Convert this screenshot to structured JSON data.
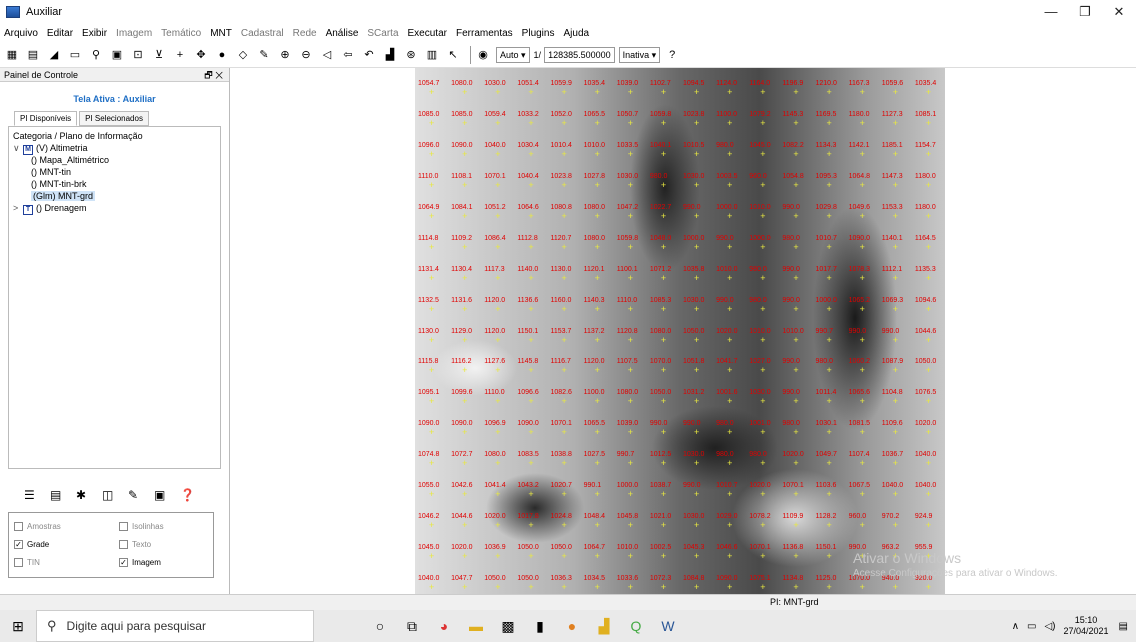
{
  "window": {
    "title": "Auxiliar",
    "minimize": "—",
    "maximize": "❐",
    "close": "✕"
  },
  "menu": [
    {
      "label": "Arquivo",
      "enabled": true
    },
    {
      "label": "Editar",
      "enabled": true
    },
    {
      "label": "Exibir",
      "enabled": true
    },
    {
      "label": "Imagem",
      "enabled": false
    },
    {
      "label": "Temático",
      "enabled": false
    },
    {
      "label": "MNT",
      "enabled": true
    },
    {
      "label": "Cadastral",
      "enabled": false
    },
    {
      "label": "Rede",
      "enabled": false
    },
    {
      "label": "Análise",
      "enabled": true
    },
    {
      "label": "SCarta",
      "enabled": false
    },
    {
      "label": "Executar",
      "enabled": true
    },
    {
      "label": "Ferramentas",
      "enabled": true
    },
    {
      "label": "Plugins",
      "enabled": true
    },
    {
      "label": "Ajuda",
      "enabled": true
    }
  ],
  "toolbar": {
    "zoom_mode": "Auto",
    "scale_prefix": "1/",
    "scale_value": "128385.500000",
    "state": "Inativa",
    "help": "?"
  },
  "panel": {
    "title": "Painel de Controle",
    "pin": "🗗 ✕",
    "active_screen": "Tela Ativa : Auxiliar",
    "tabs": [
      "PI Disponíveis",
      "PI Selecionados"
    ],
    "tree_header": "Categoria / Plano de Informação",
    "category1": {
      "caret": "∨",
      "badge": "M",
      "label": "(V) Altimetria"
    },
    "items": [
      "() Mapa_Altimétrico",
      "() MNT-tin",
      "() MNT-tin-brk",
      "(Glm) MNT-grd"
    ],
    "category2": {
      "caret": ">",
      "badge": "T",
      "label": "() Drenagem"
    }
  },
  "checks": {
    "amostras": "Amostras",
    "isolinhas": "Isolinhas",
    "grade": "Grade",
    "texto": "Texto",
    "tin": "TIN",
    "imagem": "Imagem",
    "checked_mark": "✓"
  },
  "grid_values": [
    [
      "1054.7",
      "1080.0",
      "1030.0",
      "1051.4",
      "1059.9",
      "1035.4",
      "1039.0",
      "1102.7",
      "1094.5",
      "1124.0",
      "1164.0",
      "1196.9",
      "1210.0",
      "1167.3",
      "1059.6",
      "1035.4"
    ],
    [
      "1085.0",
      "1085.0",
      "1059.4",
      "1033.2",
      "1052.0",
      "1065.5",
      "1050.7",
      "1059.8",
      "1023.8",
      "1100.0",
      "1079.2",
      "1145.3",
      "1169.5",
      "1180.0",
      "1127.3",
      "1085.1"
    ],
    [
      "1096.0",
      "1090.0",
      "1040.0",
      "1030.4",
      "1010.4",
      "1010.0",
      "1033.5",
      "1040.1",
      "1010.5",
      "980.0",
      "1045.0",
      "1082.2",
      "1134.3",
      "1142.1",
      "1185.1",
      "1154.7"
    ],
    [
      "1110.0",
      "1108.1",
      "1070.1",
      "1040.4",
      "1023.8",
      "1027.8",
      "1030.0",
      "980.0",
      "1030.0",
      "1003.5",
      "960.0",
      "1054.8",
      "1095.3",
      "1064.8",
      "1147.3",
      "1180.0"
    ],
    [
      "1064.9",
      "1084.1",
      "1051.2",
      "1064.6",
      "1080.8",
      "1080.0",
      "1047.2",
      "1022.7",
      "990.0",
      "1000.0",
      "1010.0",
      "990.0",
      "1029.8",
      "1049.6",
      "1153.3",
      "1180.0"
    ],
    [
      "1114.8",
      "1109.2",
      "1086.4",
      "1112.8",
      "1120.7",
      "1080.0",
      "1059.8",
      "1048.0",
      "1000.0",
      "990.0",
      "1000.0",
      "980.0",
      "1010.7",
      "1090.0",
      "1140.1",
      "1164.5"
    ],
    [
      "1131.4",
      "1130.4",
      "1117.3",
      "1140.0",
      "1130.0",
      "1120.1",
      "1100.1",
      "1071.2",
      "1035.8",
      "1010.0",
      "980.0",
      "990.0",
      "1017.7",
      "1078.3",
      "1112.1",
      "1135.3"
    ],
    [
      "1132.5",
      "1131.6",
      "1120.0",
      "1136.6",
      "1160.0",
      "1140.3",
      "1110.0",
      "1085.3",
      "1030.0",
      "990.0",
      "980.0",
      "990.0",
      "1000.0",
      "1065.2",
      "1069.3",
      "1094.6"
    ],
    [
      "1130.0",
      "1129.0",
      "1120.0",
      "1150.1",
      "1153.7",
      "1137.2",
      "1120.8",
      "1080.0",
      "1050.0",
      "1020.0",
      "1010.0",
      "1010.0",
      "990.7",
      "990.0",
      "990.0",
      "1044.6"
    ],
    [
      "1115.8",
      "1116.2",
      "1127.6",
      "1145.8",
      "1116.7",
      "1120.0",
      "1107.5",
      "1070.0",
      "1051.8",
      "1041.7",
      "1027.0",
      "990.0",
      "980.0",
      "1060.2",
      "1087.9",
      "1050.0"
    ],
    [
      "1095.1",
      "1099.6",
      "1110.0",
      "1096.6",
      "1082.6",
      "1100.0",
      "1080.0",
      "1050.0",
      "1031.2",
      "1001.6",
      "1030.0",
      "990.0",
      "1011.4",
      "1065.6",
      "1104.8",
      "1076.5"
    ],
    [
      "1090.0",
      "1090.0",
      "1096.9",
      "1090.0",
      "1070.1",
      "1065.5",
      "1039.0",
      "990.0",
      "990.0",
      "980.0",
      "1001.0",
      "980.0",
      "1030.1",
      "1081.5",
      "1109.6",
      "1020.0"
    ],
    [
      "1074.8",
      "1072.7",
      "1080.0",
      "1083.5",
      "1038.8",
      "1027.5",
      "990.7",
      "1012.5",
      "1030.0",
      "980.0",
      "980.0",
      "1020.0",
      "1049.7",
      "1107.4",
      "1036.7",
      "1040.0"
    ],
    [
      "1055.0",
      "1042.6",
      "1041.4",
      "1043.2",
      "1020.7",
      "990.1",
      "1000.0",
      "1038.7",
      "990.0",
      "1010.7",
      "1020.0",
      "1070.1",
      "1103.6",
      "1067.5",
      "1040.0",
      "1040.0"
    ],
    [
      "1046.2",
      "1044.6",
      "1020.0",
      "1017.8",
      "1024.8",
      "1048.4",
      "1045.8",
      "1021.0",
      "1030.0",
      "1029.0",
      "1078.2",
      "1109.9",
      "1128.2",
      "960.0",
      "970.2",
      "924.9"
    ],
    [
      "1045.0",
      "1020.0",
      "1036.9",
      "1050.0",
      "1050.0",
      "1064.7",
      "1010.0",
      "1002.5",
      "1045.3",
      "1046.6",
      "1070.1",
      "1136.8",
      "1150.1",
      "990.0",
      "963.2",
      "955.9"
    ],
    [
      "1040.0",
      "1047.7",
      "1050.0",
      "1050.0",
      "1036.3",
      "1034.5",
      "1033.6",
      "1072.3",
      "1084.8",
      "1090.0",
      "1075.1",
      "1134.8",
      "1125.0",
      "1070.0",
      "940.0",
      "920.0"
    ]
  ],
  "watermark": {
    "line1": "Ativar o Windows",
    "line2": "Acesse Configurações para ativar o Windows."
  },
  "status": {
    "pi": "PI: MNT-grd"
  },
  "taskbar": {
    "search_placeholder": "Digite aqui para pesquisar",
    "time": "15:10",
    "date": "27/04/2021"
  }
}
